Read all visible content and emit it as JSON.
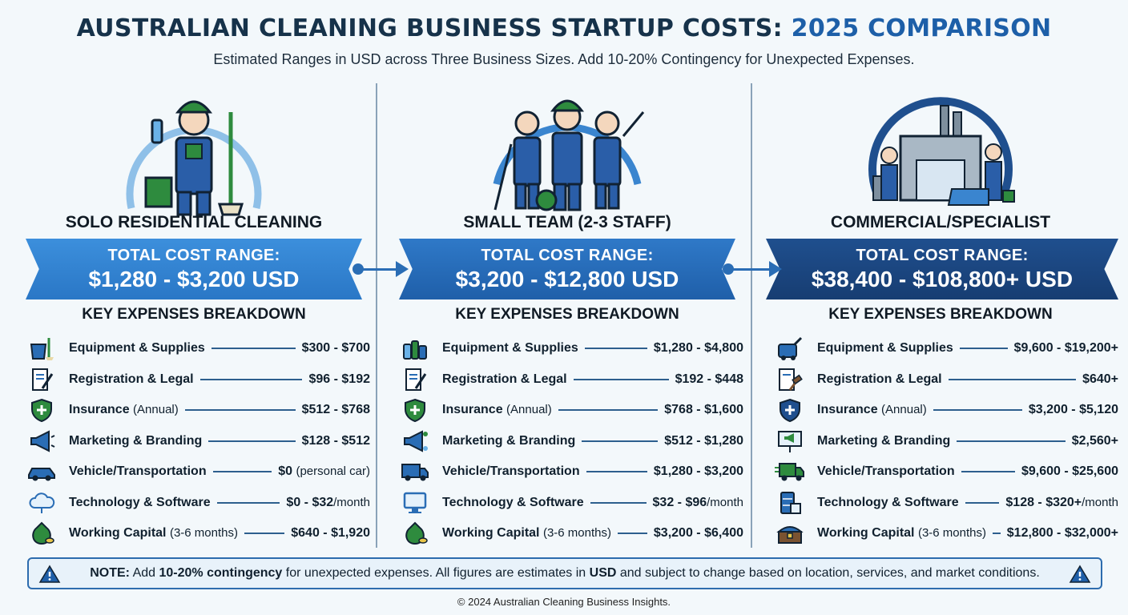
{
  "header": {
    "title_main": "AUSTRALIAN CLEANING BUSINESS STARTUP COSTS:",
    "title_accent": "2025 COMPARISON",
    "subtitle": "Estimated Ranges in USD across Three Business Sizes. Add 10-20% Contingency for Unexpected Expenses."
  },
  "colors": {
    "light_blue": "#3c8fdc",
    "mid_blue": "#2a6db5",
    "dark_blue": "#173d72",
    "green": "#2e8b3e"
  },
  "columns": [
    {
      "title": "SOLO RESIDENTIAL CLEANING",
      "banner_label": "TOTAL COST RANGE:",
      "banner_value": "$1,280 - $3,200 USD",
      "breakdown_heading": "KEY EXPENSES BREAKDOWN",
      "rows": [
        {
          "icon": "bucket-supplies-icon",
          "label": "Equipment & Supplies",
          "label_extra": "",
          "value": "$300 - $700",
          "value_extra": ""
        },
        {
          "icon": "document-pen-icon",
          "label": "Registration & Legal",
          "label_extra": "",
          "value": "$96 - $192",
          "value_extra": ""
        },
        {
          "icon": "shield-icon",
          "label": "Insurance",
          "label_extra": "(Annual)",
          "value": "$512 - $768",
          "value_extra": ""
        },
        {
          "icon": "megaphone-icon",
          "label": "Marketing & Branding",
          "label_extra": "",
          "value": "$128 - $512",
          "value_extra": ""
        },
        {
          "icon": "car-icon",
          "label": "Vehicle/Transportation",
          "label_extra": "",
          "value": "$0",
          "value_extra": "(personal car)"
        },
        {
          "icon": "cloud-icon",
          "label": "Technology & Software",
          "label_extra": "",
          "value": "$0 - $32",
          "value_extra": "/month"
        },
        {
          "icon": "money-bag-icon",
          "label": "Working Capital",
          "label_extra": "(3-6 months)",
          "value": "$640 - $1,920",
          "value_extra": ""
        }
      ]
    },
    {
      "title": "SMALL TEAM (2-3 STAFF)",
      "banner_label": "TOTAL COST RANGE:",
      "banner_value": "$3,200 - $12,800 USD",
      "breakdown_heading": "KEY EXPENSES BREAKDOWN",
      "rows": [
        {
          "icon": "spray-bottles-icon",
          "label": "Equipment & Supplies",
          "label_extra": "",
          "value": "$1,280 - $4,800",
          "value_extra": ""
        },
        {
          "icon": "document-pen-icon",
          "label": "Registration & Legal",
          "label_extra": "",
          "value": "$192 - $448",
          "value_extra": ""
        },
        {
          "icon": "shield-icon",
          "label": "Insurance",
          "label_extra": "(Annual)",
          "value": "$768 - $1,600",
          "value_extra": ""
        },
        {
          "icon": "megaphone-icon",
          "label": "Marketing & Branding",
          "label_extra": "",
          "value": "$512 - $1,280",
          "value_extra": ""
        },
        {
          "icon": "van-icon",
          "label": "Vehicle/Transportation",
          "label_extra": "",
          "value": "$1,280 - $3,200",
          "value_extra": ""
        },
        {
          "icon": "monitor-icon",
          "label": "Technology & Software",
          "label_extra": "",
          "value": "$32 - $96",
          "value_extra": "/month"
        },
        {
          "icon": "money-bag-icon",
          "label": "Working Capital",
          "label_extra": "(3-6 months)",
          "value": "$3,200 - $6,400",
          "value_extra": ""
        }
      ]
    },
    {
      "title": "COMMERCIAL/SPECIALIST",
      "banner_label": "TOTAL COST RANGE:",
      "banner_value": "$38,400 - $108,800+ USD",
      "breakdown_heading": "KEY EXPENSES BREAKDOWN",
      "rows": [
        {
          "icon": "floor-machine-icon",
          "label": "Equipment & Supplies",
          "label_extra": "",
          "value": "$9,600 - $19,200+",
          "value_extra": ""
        },
        {
          "icon": "document-gavel-icon",
          "label": "Registration & Legal",
          "label_extra": "",
          "value": "$640+",
          "value_extra": ""
        },
        {
          "icon": "shield-icon",
          "label": "Insurance",
          "label_extra": "(Annual)",
          "value": "$3,200 - $5,120",
          "value_extra": ""
        },
        {
          "icon": "billboard-icon",
          "label": "Marketing & Branding",
          "label_extra": "",
          "value": "$2,560+",
          "value_extra": ""
        },
        {
          "icon": "truck-icon",
          "label": "Vehicle/Transportation",
          "label_extra": "",
          "value": "$9,600 - $25,600",
          "value_extra": ""
        },
        {
          "icon": "server-icon",
          "label": "Technology & Software",
          "label_extra": "",
          "value": "$128 - $320+",
          "value_extra": "/month"
        },
        {
          "icon": "treasure-chest-icon",
          "label": "Working Capital",
          "label_extra": "(3-6 months)",
          "value": "$12,800 - $32,000+",
          "value_extra": ""
        }
      ]
    }
  ],
  "note": {
    "prefix": "NOTE:",
    "t1": " Add ",
    "b1": "10-20% contingency",
    "t2": " for unexpected expenses. All figures are estimates in ",
    "b2": "USD",
    "t3": " and subject to change based on location, services, and market conditions."
  },
  "footer": "© 2024 Australian Cleaning Business Insights."
}
